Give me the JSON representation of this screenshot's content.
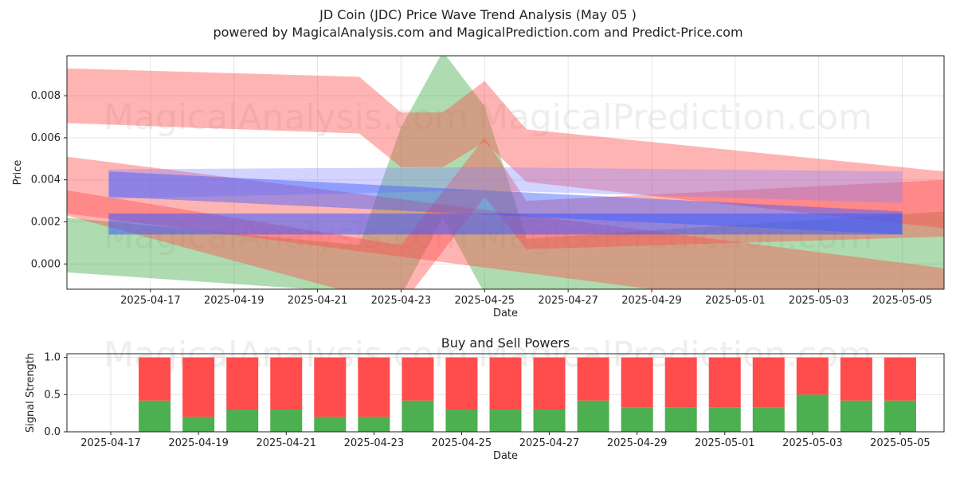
{
  "header": {
    "title": "JD Coin (JDC) Price Wave Trend Analysis (May 05 )",
    "subtitle": "powered by MagicalAnalysis.com and MagicalPrediction.com and Predict-Price.com"
  },
  "watermarks": [
    "MagicalAnalysis.com",
    "MagicalPrediction.com"
  ],
  "chart_data": [
    {
      "type": "area",
      "title": "",
      "xlabel": "Date",
      "ylabel": "Price",
      "x_range": [
        "2025-04-15",
        "2025-05-06"
      ],
      "ylim": [
        -0.0012,
        0.0099
      ],
      "x_ticks": [
        "2025-04-17",
        "2025-04-19",
        "2025-04-21",
        "2025-04-23",
        "2025-04-25",
        "2025-04-27",
        "2025-04-29",
        "2025-05-01",
        "2025-05-03",
        "2025-05-05"
      ],
      "y_ticks": [
        "0.000",
        "0.002",
        "0.004",
        "0.006",
        "0.008"
      ],
      "grid": true,
      "series": [
        {
          "color": "#4caf50",
          "opacity": 0.45,
          "upper": [
            [
              "2025-04-15",
              0.0022
            ],
            [
              "2025-04-22",
              0.0009
            ],
            [
              "2025-04-23",
              0.0065
            ],
            [
              "2025-04-24",
              0.0101
            ],
            [
              "2025-04-25",
              0.0075
            ],
            [
              "2025-04-26",
              0.0012
            ],
            [
              "2025-05-06",
              0.0025
            ]
          ],
          "lower": [
            [
              "2025-04-15",
              -0.0004
            ],
            [
              "2025-04-23",
              -0.0015
            ],
            [
              "2025-04-24",
              0.0022
            ],
            [
              "2025-04-25",
              -0.0014
            ],
            [
              "2025-05-06",
              -0.0015
            ]
          ]
        },
        {
          "color": "#ff4c4c",
          "opacity": 0.42,
          "upper": [
            [
              "2025-04-15",
              0.0093
            ],
            [
              "2025-04-22",
              0.0089
            ],
            [
              "2025-04-23",
              0.0072
            ],
            [
              "2025-04-24",
              0.0072
            ],
            [
              "2025-04-25",
              0.0087
            ],
            [
              "2025-04-26",
              0.0064
            ],
            [
              "2025-05-06",
              0.0044
            ]
          ],
          "lower": [
            [
              "2025-04-15",
              0.0067
            ],
            [
              "2025-04-22",
              0.0062
            ],
            [
              "2025-04-23",
              0.0046
            ],
            [
              "2025-04-24",
              0.0046
            ],
            [
              "2025-04-25",
              0.0058
            ],
            [
              "2025-04-26",
              0.0039
            ],
            [
              "2025-05-06",
              0.0017
            ]
          ]
        },
        {
          "color": "#ff4c4c",
          "opacity": 0.42,
          "upper": [
            [
              "2025-04-15",
              0.0051
            ],
            [
              "2025-05-06",
              -0.0002
            ]
          ],
          "lower": [
            [
              "2025-04-15",
              0.0024
            ],
            [
              "2025-05-06",
              -0.003
            ]
          ]
        },
        {
          "color": "#ff4c4c",
          "opacity": 0.42,
          "upper": [
            [
              "2025-04-15",
              0.0035
            ],
            [
              "2025-04-23",
              0.0009
            ],
            [
              "2025-04-25",
              0.006
            ],
            [
              "2025-04-26",
              0.003
            ],
            [
              "2025-05-06",
              0.004
            ]
          ],
          "lower": [
            [
              "2025-04-15",
              0.0023
            ],
            [
              "2025-04-23",
              -0.002
            ],
            [
              "2025-04-25",
              0.0032
            ],
            [
              "2025-04-26",
              0.0007
            ],
            [
              "2025-05-06",
              0.0013
            ]
          ]
        },
        {
          "color": "#8080ff",
          "opacity": 0.35,
          "upper": [
            [
              "2025-04-16",
              0.0045
            ],
            [
              "2025-04-25",
              0.0046
            ],
            [
              "2025-05-05",
              0.0044
            ]
          ],
          "lower": [
            [
              "2025-04-16",
              0.0031
            ],
            [
              "2025-04-25",
              0.0035
            ],
            [
              "2025-05-05",
              0.0029
            ]
          ]
        },
        {
          "color": "#3b5bff",
          "opacity": 0.45,
          "upper": [
            [
              "2025-04-16",
              0.0044
            ],
            [
              "2025-05-05",
              0.0025
            ]
          ],
          "lower": [
            [
              "2025-04-16",
              0.0032
            ],
            [
              "2025-05-05",
              0.0014
            ]
          ]
        },
        {
          "color": "#3b5bff",
          "opacity": 0.55,
          "upper": [
            [
              "2025-04-16",
              0.0024
            ],
            [
              "2025-04-25",
              0.0024
            ],
            [
              "2025-05-05",
              0.0024
            ]
          ],
          "lower": [
            [
              "2025-04-16",
              0.0014
            ],
            [
              "2025-04-25",
              0.0014
            ],
            [
              "2025-05-05",
              0.0014
            ]
          ]
        }
      ]
    },
    {
      "type": "bar",
      "title": "Buy and Sell Powers",
      "xlabel": "Date",
      "ylabel": "Signal Strength",
      "x_range": [
        "2025-04-16",
        "2025-05-06"
      ],
      "ylim": [
        0,
        1.05
      ],
      "x_ticks": [
        "2025-04-17",
        "2025-04-19",
        "2025-04-21",
        "2025-04-23",
        "2025-04-25",
        "2025-04-27",
        "2025-04-29",
        "2025-05-01",
        "2025-05-03",
        "2025-05-05"
      ],
      "y_ticks": [
        "0.0",
        "0.5",
        "1.0"
      ],
      "categories": [
        "2025-04-18",
        "2025-04-19",
        "2025-04-20",
        "2025-04-21",
        "2025-04-22",
        "2025-04-23",
        "2025-04-24",
        "2025-04-25",
        "2025-04-26",
        "2025-04-27",
        "2025-04-28",
        "2025-04-29",
        "2025-04-30",
        "2025-05-01",
        "2025-05-02",
        "2025-05-03",
        "2025-05-04",
        "2025-05-05"
      ],
      "series": [
        {
          "color": "#4caf50",
          "values": [
            0.42,
            0.2,
            0.3,
            0.3,
            0.2,
            0.2,
            0.42,
            0.3,
            0.3,
            0.3,
            0.42,
            0.33,
            0.33,
            0.33,
            0.33,
            0.5,
            0.42,
            0.42
          ]
        },
        {
          "color": "#ff4c4c",
          "values": [
            0.58,
            0.8,
            0.7,
            0.7,
            0.8,
            0.8,
            0.58,
            0.7,
            0.7,
            0.7,
            0.58,
            0.67,
            0.67,
            0.67,
            0.67,
            0.5,
            0.58,
            0.58
          ]
        }
      ]
    }
  ]
}
